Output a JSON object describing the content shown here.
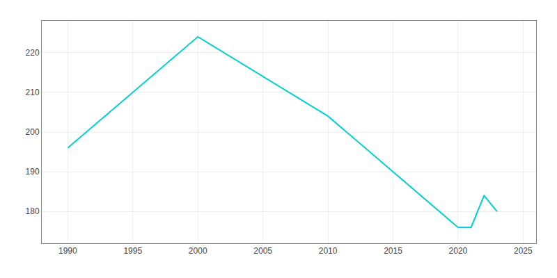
{
  "chart_data": {
    "type": "line",
    "x": [
      1990,
      2000,
      2010,
      2020,
      2021,
      2022,
      2023
    ],
    "values": [
      196,
      224,
      204,
      176,
      176,
      184,
      180
    ],
    "color": "#00CED1",
    "xlim": [
      1988,
      2026
    ],
    "ylim": [
      172,
      228
    ],
    "xticks": [
      1990,
      1995,
      2000,
      2005,
      2010,
      2015,
      2020,
      2025
    ],
    "yticks": [
      180,
      190,
      200,
      210,
      220
    ],
    "grid": true
  }
}
